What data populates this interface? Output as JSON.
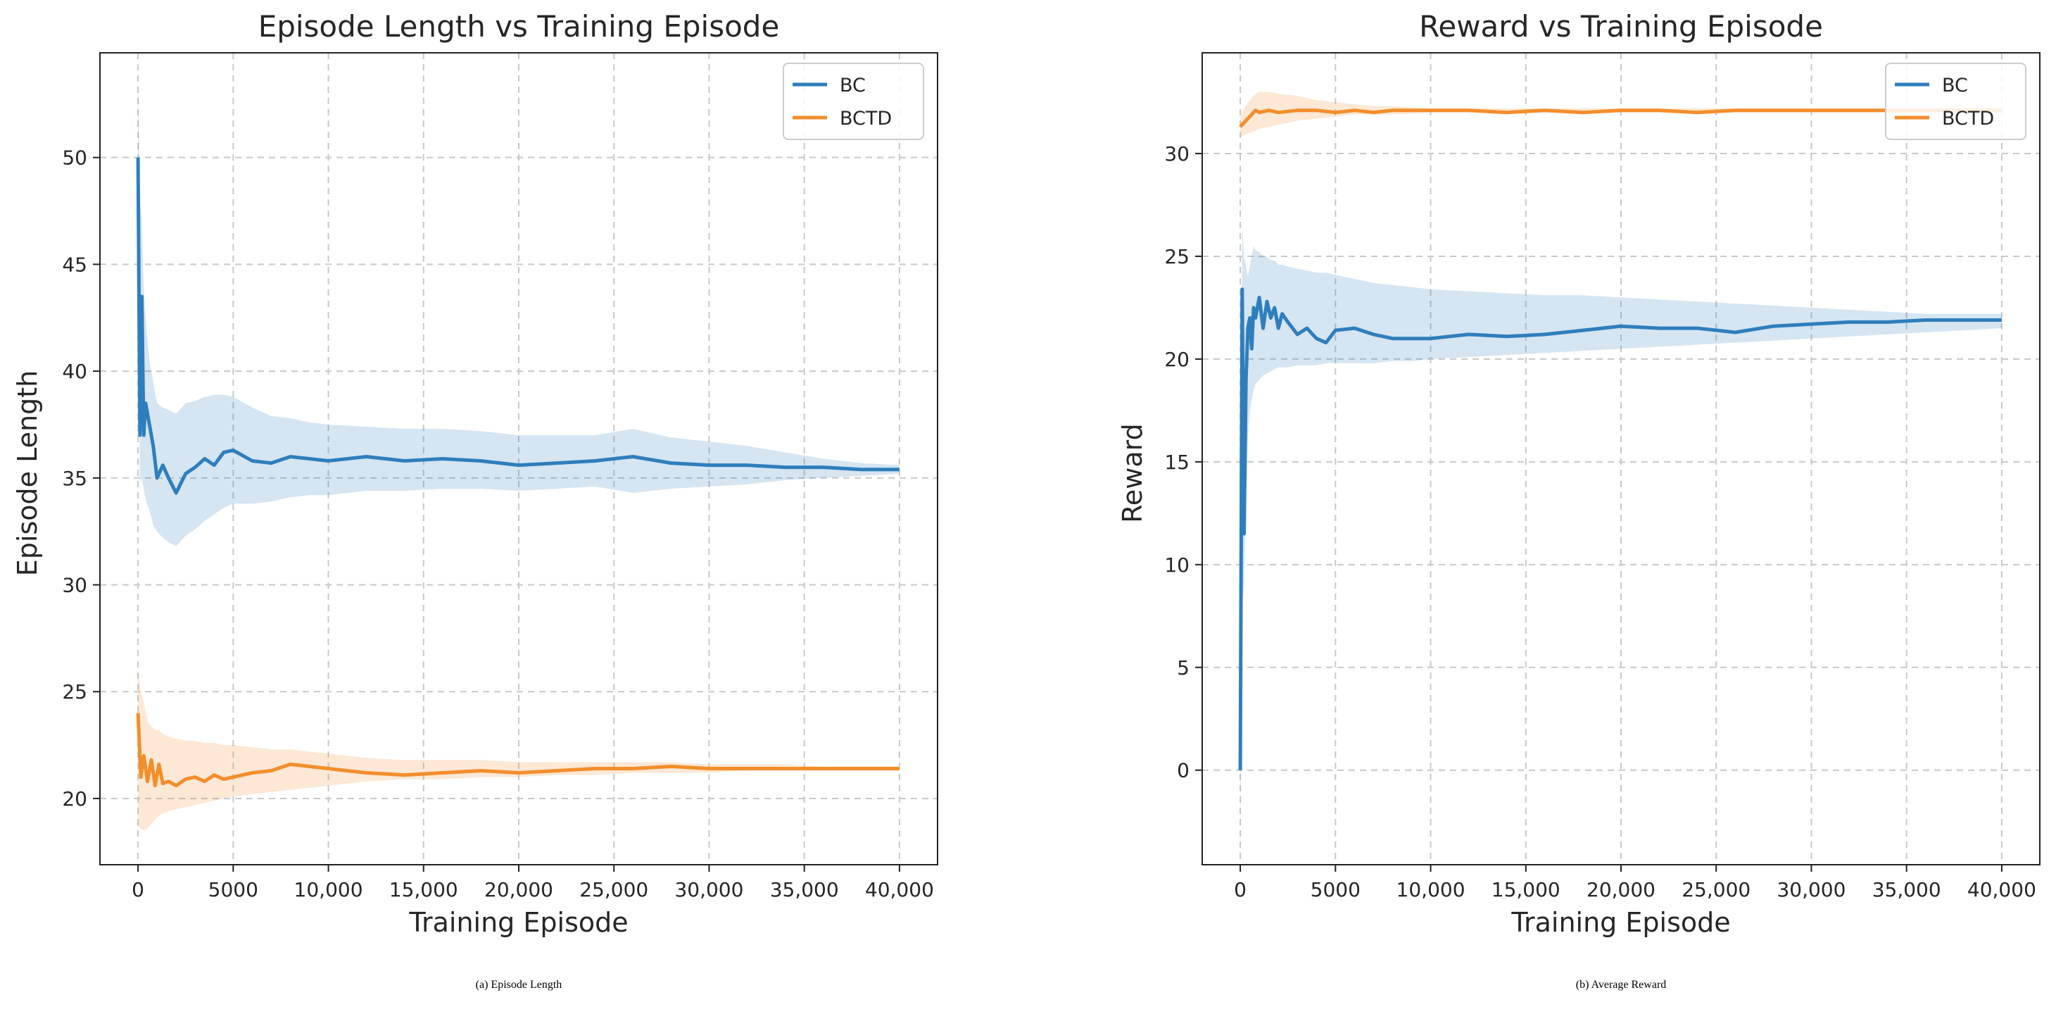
{
  "colors": {
    "bc": "#2f7ebc",
    "bctd": "#f28e2b",
    "grid": "#c8c8c8",
    "frame": "#222222"
  },
  "chart_data": [
    {
      "type": "line",
      "title": "Episode Length vs Training Episode",
      "xlabel": "Training Episode",
      "ylabel": "Episode Length",
      "xlim": [
        -2000,
        42000
      ],
      "ylim": [
        16.9,
        54.9
      ],
      "xticks": [
        0,
        5000,
        10000,
        15000,
        20000,
        25000,
        30000,
        35000,
        40000
      ],
      "xtick_labels": [
        "0",
        "5000",
        "10,000",
        "15,000",
        "20,000",
        "25,000",
        "30,000",
        "35,000",
        "40,000"
      ],
      "yticks": [
        20,
        25,
        30,
        35,
        40,
        45,
        50
      ],
      "ytick_labels": [
        "20",
        "25",
        "30",
        "35",
        "40",
        "45",
        "50"
      ],
      "legend_position": "top-right",
      "caption_label": "a",
      "caption_text": " Episode Length",
      "series": [
        {
          "name": "BC",
          "x": [
            0,
            100,
            200,
            300,
            400,
            600,
            800,
            1000,
            1300,
            1600,
            2000,
            2500,
            3000,
            3500,
            4000,
            4500,
            5000,
            6000,
            7000,
            8000,
            9000,
            10000,
            12000,
            14000,
            16000,
            18000,
            20000,
            22000,
            24000,
            26000,
            28000,
            30000,
            32000,
            34000,
            36000,
            38000,
            40000
          ],
          "y": [
            50.0,
            37.0,
            43.5,
            37.0,
            38.5,
            37.5,
            36.5,
            35.0,
            35.6,
            35.0,
            34.3,
            35.2,
            35.5,
            35.9,
            35.6,
            36.2,
            36.3,
            35.8,
            35.7,
            36.0,
            35.9,
            35.8,
            36.0,
            35.8,
            35.9,
            35.8,
            35.6,
            35.7,
            35.8,
            36.0,
            35.7,
            35.6,
            35.6,
            35.5,
            35.5,
            35.4,
            35.4
          ],
          "upper": [
            54.0,
            48.0,
            47.0,
            44.0,
            42.5,
            40.5,
            39.5,
            38.5,
            38.3,
            38.2,
            38.0,
            38.5,
            38.6,
            38.8,
            38.9,
            38.9,
            38.8,
            38.3,
            37.9,
            37.8,
            37.6,
            37.5,
            37.4,
            37.3,
            37.3,
            37.2,
            37.0,
            37.0,
            37.0,
            37.3,
            36.9,
            36.7,
            36.5,
            36.2,
            35.9,
            35.7,
            35.6
          ],
          "lower": [
            46.0,
            34.8,
            35.0,
            34.5,
            34.0,
            33.5,
            32.8,
            32.5,
            32.2,
            32.0,
            31.8,
            32.3,
            32.6,
            33.0,
            33.3,
            33.6,
            33.8,
            33.8,
            33.9,
            34.1,
            34.2,
            34.2,
            34.4,
            34.4,
            34.5,
            34.5,
            34.4,
            34.5,
            34.6,
            34.3,
            34.5,
            34.6,
            34.7,
            34.9,
            35.0,
            35.1,
            35.2
          ]
        },
        {
          "name": "BCTD",
          "x": [
            0,
            150,
            300,
            500,
            700,
            900,
            1100,
            1300,
            1600,
            2000,
            2500,
            3000,
            3500,
            4000,
            4500,
            5000,
            6000,
            7000,
            8000,
            9000,
            10000,
            12000,
            14000,
            16000,
            18000,
            20000,
            22000,
            24000,
            26000,
            28000,
            30000,
            32000,
            34000,
            36000,
            38000,
            40000
          ],
          "y": [
            24.0,
            21.0,
            22.0,
            20.8,
            21.8,
            20.6,
            21.6,
            20.7,
            20.8,
            20.6,
            20.9,
            21.0,
            20.8,
            21.1,
            20.9,
            21.0,
            21.2,
            21.3,
            21.6,
            21.5,
            21.4,
            21.2,
            21.1,
            21.2,
            21.3,
            21.2,
            21.3,
            21.4,
            21.4,
            21.5,
            21.4,
            21.4,
            21.4,
            21.4,
            21.4,
            21.4
          ],
          "upper": [
            26.0,
            25.0,
            24.5,
            23.6,
            23.4,
            23.2,
            23.2,
            23.0,
            22.9,
            22.8,
            22.7,
            22.7,
            22.6,
            22.6,
            22.5,
            22.5,
            22.4,
            22.3,
            22.3,
            22.2,
            22.1,
            21.9,
            21.8,
            21.8,
            21.8,
            21.7,
            21.7,
            21.7,
            21.7,
            21.7,
            21.6,
            21.6,
            21.6,
            21.5,
            21.5,
            21.5
          ],
          "lower": [
            18.7,
            18.6,
            18.5,
            18.6,
            18.8,
            19.0,
            19.2,
            19.3,
            19.4,
            19.5,
            19.6,
            19.7,
            19.8,
            19.9,
            20.0,
            20.1,
            20.2,
            20.3,
            20.4,
            20.5,
            20.6,
            20.8,
            20.9,
            20.9,
            21.0,
            21.0,
            21.1,
            21.1,
            21.2,
            21.2,
            21.2,
            21.3,
            21.3,
            21.3,
            21.3,
            21.3
          ]
        }
      ]
    },
    {
      "type": "line",
      "title": "Reward vs Training Episode",
      "xlabel": "Training Episode",
      "ylabel": "Reward",
      "xlim": [
        -2000,
        42000
      ],
      "ylim": [
        -4.6,
        34.9
      ],
      "xticks": [
        0,
        5000,
        10000,
        15000,
        20000,
        25000,
        30000,
        35000,
        40000
      ],
      "xtick_labels": [
        "0",
        "5000",
        "10,000",
        "15,000",
        "20,000",
        "25,000",
        "30,000",
        "35,000",
        "40,000"
      ],
      "yticks": [
        0,
        5,
        10,
        15,
        20,
        25,
        30
      ],
      "ytick_labels": [
        "0",
        "5",
        "10",
        "15",
        "20",
        "25",
        "30"
      ],
      "legend_position": "top-right",
      "caption_label": "b",
      "caption_text": " Average Reward",
      "series": [
        {
          "name": "BC",
          "x": [
            0,
            100,
            200,
            300,
            400,
            500,
            600,
            700,
            800,
            1000,
            1200,
            1400,
            1600,
            1800,
            2000,
            2200,
            2500,
            3000,
            3500,
            4000,
            4500,
            5000,
            6000,
            7000,
            8000,
            9000,
            10000,
            12000,
            14000,
            16000,
            18000,
            20000,
            22000,
            24000,
            26000,
            28000,
            30000,
            32000,
            34000,
            36000,
            38000,
            40000
          ],
          "y": [
            0.0,
            23.4,
            11.5,
            19.0,
            21.5,
            22.0,
            20.5,
            22.5,
            22.0,
            23.0,
            21.5,
            22.8,
            22.0,
            22.5,
            21.5,
            22.2,
            21.8,
            21.2,
            21.5,
            21.0,
            20.8,
            21.4,
            21.5,
            21.2,
            21.0,
            21.0,
            21.0,
            21.2,
            21.1,
            21.2,
            21.4,
            21.6,
            21.5,
            21.5,
            21.3,
            21.6,
            21.7,
            21.8,
            21.8,
            21.9,
            21.9,
            21.9
          ],
          "upper": [
            3.0,
            26.5,
            25.0,
            24.5,
            24.0,
            24.5,
            25.0,
            25.5,
            25.3,
            25.2,
            25.0,
            25.0,
            24.8,
            24.8,
            24.6,
            24.6,
            24.5,
            24.4,
            24.3,
            24.2,
            24.2,
            24.1,
            23.9,
            23.7,
            23.6,
            23.5,
            23.4,
            23.3,
            23.2,
            23.1,
            23.1,
            23.0,
            22.9,
            22.8,
            22.7,
            22.6,
            22.5,
            22.4,
            22.3,
            22.2,
            22.2,
            22.2
          ],
          "lower": [
            -3.0,
            8.0,
            9.0,
            13.0,
            16.0,
            17.5,
            18.0,
            18.5,
            18.8,
            19.0,
            19.2,
            19.3,
            19.4,
            19.5,
            19.6,
            19.6,
            19.6,
            19.7,
            19.7,
            19.7,
            19.8,
            19.8,
            19.8,
            19.8,
            19.9,
            19.9,
            20.0,
            20.1,
            20.2,
            20.3,
            20.4,
            20.5,
            20.6,
            20.7,
            20.8,
            20.9,
            21.0,
            21.1,
            21.2,
            21.3,
            21.4,
            21.5
          ]
        },
        {
          "name": "BCTD",
          "x": [
            0,
            200,
            500,
            800,
            1000,
            1500,
            2000,
            3000,
            4000,
            5000,
            6000,
            7000,
            8000,
            10000,
            12000,
            14000,
            16000,
            18000,
            20000,
            22000,
            24000,
            26000,
            28000,
            30000,
            32000,
            34000,
            36000,
            38000,
            40000
          ],
          "y": [
            31.3,
            31.5,
            31.8,
            32.1,
            32.0,
            32.1,
            32.0,
            32.1,
            32.1,
            32.0,
            32.1,
            32.0,
            32.1,
            32.1,
            32.1,
            32.0,
            32.1,
            32.0,
            32.1,
            32.1,
            32.0,
            32.1,
            32.1,
            32.1,
            32.1,
            32.1,
            32.1,
            32.1,
            32.1
          ],
          "upper": [
            31.8,
            32.2,
            32.6,
            32.9,
            33.0,
            33.0,
            32.9,
            32.8,
            32.6,
            32.5,
            32.4,
            32.3,
            32.3,
            32.2,
            32.2,
            32.2,
            32.2,
            32.2,
            32.2,
            32.2,
            32.2,
            32.2,
            32.2,
            32.2,
            32.2,
            32.2,
            32.2,
            32.2,
            32.2
          ],
          "lower": [
            30.8,
            30.9,
            31.0,
            31.1,
            31.2,
            31.3,
            31.4,
            31.6,
            31.7,
            31.8,
            31.9,
            31.9,
            31.9,
            32.0,
            32.0,
            32.0,
            32.0,
            32.0,
            32.0,
            32.0,
            32.0,
            32.0,
            32.0,
            32.0,
            32.0,
            32.0,
            32.0,
            32.0,
            32.0
          ]
        }
      ]
    }
  ]
}
